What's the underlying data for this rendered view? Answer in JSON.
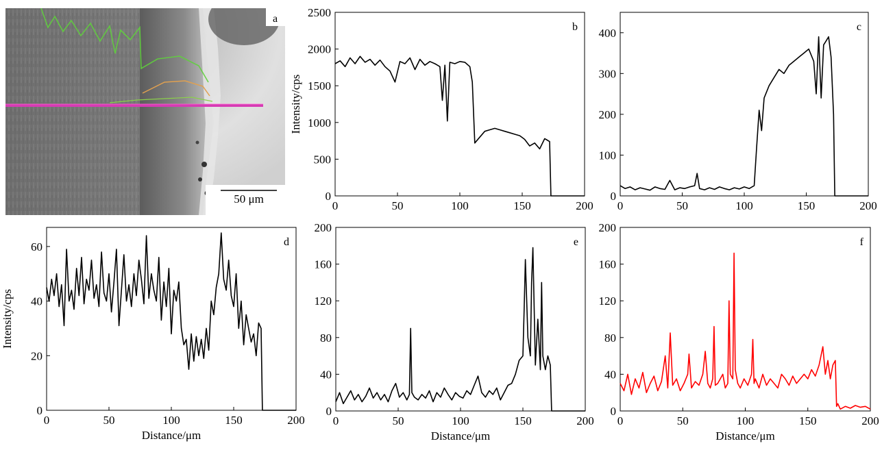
{
  "micrograph": {
    "label": "a",
    "scale_bar_label": "50 μm"
  },
  "chart_data": [
    {
      "type": "line",
      "label": "b",
      "color": "#000000",
      "xlabel": "",
      "ylabel": "Intensity/cps",
      "xlim": [
        0,
        200
      ],
      "ylim": [
        0,
        2500
      ],
      "xticks": [
        0,
        50,
        100,
        150,
        200
      ],
      "yticks": [
        0,
        500,
        1000,
        1500,
        2000,
        2500
      ],
      "x": [
        0,
        4,
        8,
        12,
        16,
        20,
        24,
        28,
        32,
        36,
        40,
        44,
        48,
        52,
        56,
        60,
        64,
        68,
        72,
        76,
        80,
        84,
        86,
        88,
        90,
        92,
        96,
        100,
        104,
        108,
        110,
        112,
        116,
        120,
        124,
        128,
        132,
        136,
        140,
        144,
        148,
        152,
        156,
        160,
        164,
        168,
        170,
        172,
        173,
        176,
        180,
        184,
        188,
        192,
        196,
        200
      ],
      "values": [
        1800,
        1840,
        1760,
        1880,
        1800,
        1900,
        1820,
        1860,
        1780,
        1850,
        1760,
        1700,
        1550,
        1830,
        1800,
        1880,
        1720,
        1860,
        1780,
        1830,
        1800,
        1760,
        1300,
        1780,
        1020,
        1820,
        1800,
        1830,
        1820,
        1760,
        1550,
        720,
        800,
        880,
        900,
        920,
        900,
        880,
        860,
        840,
        820,
        770,
        680,
        720,
        640,
        780,
        760,
        740,
        0,
        0,
        0,
        0,
        0,
        0,
        0,
        0
      ]
    },
    {
      "type": "line",
      "label": "c",
      "color": "#000000",
      "xlabel": "",
      "ylabel": "",
      "xlim": [
        0,
        200
      ],
      "ylim": [
        0,
        450
      ],
      "xticks": [
        0,
        50,
        100,
        150,
        200
      ],
      "yticks": [
        0,
        100,
        200,
        300,
        400
      ],
      "x": [
        0,
        4,
        8,
        12,
        16,
        20,
        24,
        28,
        32,
        36,
        40,
        44,
        48,
        52,
        56,
        60,
        62,
        64,
        68,
        72,
        76,
        80,
        84,
        88,
        92,
        96,
        100,
        104,
        108,
        110,
        112,
        114,
        116,
        120,
        124,
        128,
        132,
        136,
        140,
        144,
        148,
        152,
        156,
        158,
        160,
        162,
        164,
        166,
        168,
        170,
        172,
        173,
        176,
        180,
        184,
        188,
        192,
        196,
        200
      ],
      "values": [
        25,
        18,
        22,
        15,
        20,
        17,
        14,
        22,
        18,
        16,
        38,
        15,
        20,
        18,
        22,
        25,
        55,
        18,
        15,
        20,
        16,
        22,
        18,
        15,
        20,
        17,
        22,
        18,
        25,
        120,
        210,
        160,
        240,
        270,
        290,
        310,
        300,
        320,
        330,
        340,
        350,
        360,
        330,
        250,
        390,
        240,
        370,
        380,
        390,
        340,
        200,
        0,
        0,
        0,
        0,
        0,
        0,
        0,
        0
      ]
    },
    {
      "type": "line",
      "label": "d",
      "color": "#000000",
      "xlabel": "Distance/μm",
      "ylabel": "Intensity/cps",
      "xlim": [
        0,
        200
      ],
      "ylim": [
        0,
        67
      ],
      "xticks": [
        0,
        50,
        100,
        150,
        200
      ],
      "yticks": [
        0,
        20,
        40,
        60
      ],
      "x": [
        0,
        2,
        4,
        6,
        8,
        10,
        12,
        14,
        16,
        18,
        20,
        22,
        24,
        26,
        28,
        30,
        32,
        34,
        36,
        38,
        40,
        42,
        44,
        46,
        48,
        50,
        52,
        54,
        56,
        58,
        60,
        62,
        64,
        66,
        68,
        70,
        72,
        74,
        76,
        78,
        80,
        82,
        84,
        86,
        88,
        90,
        92,
        94,
        96,
        98,
        100,
        102,
        104,
        106,
        108,
        110,
        112,
        114,
        116,
        118,
        120,
        122,
        124,
        126,
        128,
        130,
        132,
        134,
        136,
        138,
        140,
        142,
        144,
        146,
        148,
        150,
        152,
        154,
        156,
        158,
        160,
        162,
        164,
        166,
        168,
        170,
        172,
        173,
        176,
        180,
        184,
        188,
        192,
        196,
        200
      ],
      "values": [
        45,
        40,
        48,
        42,
        50,
        38,
        46,
        31,
        59,
        40,
        44,
        37,
        52,
        42,
        56,
        39,
        48,
        44,
        55,
        41,
        46,
        38,
        58,
        43,
        40,
        50,
        36,
        47,
        59,
        31,
        44,
        57,
        40,
        46,
        38,
        50,
        42,
        55,
        48,
        39,
        64,
        41,
        50,
        44,
        40,
        56,
        33,
        47,
        38,
        52,
        28,
        44,
        40,
        47,
        30,
        24,
        26,
        15,
        28,
        18,
        27,
        20,
        26,
        19,
        30,
        22,
        40,
        35,
        45,
        50,
        65,
        48,
        44,
        55,
        42,
        38,
        50,
        30,
        40,
        24,
        35,
        30,
        25,
        28,
        20,
        32,
        30,
        0,
        0,
        0,
        0,
        0,
        0,
        0,
        0
      ]
    },
    {
      "type": "line",
      "label": "e",
      "color": "#000000",
      "xlabel": "Distance/μm",
      "ylabel": "",
      "xlim": [
        0,
        200
      ],
      "ylim": [
        0,
        200
      ],
      "xticks": [
        0,
        50,
        100,
        150,
        200
      ],
      "yticks": [
        0,
        40,
        80,
        120,
        160,
        200
      ],
      "x": [
        0,
        3,
        6,
        9,
        12,
        15,
        18,
        21,
        24,
        27,
        30,
        33,
        36,
        39,
        42,
        45,
        48,
        51,
        54,
        57,
        59,
        60,
        61,
        63,
        66,
        69,
        72,
        75,
        78,
        81,
        84,
        87,
        90,
        93,
        96,
        99,
        102,
        105,
        108,
        111,
        114,
        117,
        120,
        123,
        126,
        129,
        132,
        135,
        138,
        141,
        144,
        147,
        150,
        151,
        152,
        154,
        156,
        157,
        158,
        160,
        162,
        164,
        165,
        166,
        168,
        170,
        172,
        173,
        176,
        180,
        184,
        188,
        190,
        192,
        196,
        200
      ],
      "values": [
        10,
        20,
        8,
        15,
        22,
        12,
        18,
        10,
        16,
        25,
        14,
        20,
        12,
        18,
        10,
        22,
        30,
        15,
        20,
        12,
        18,
        90,
        20,
        15,
        12,
        18,
        14,
        22,
        10,
        20,
        15,
        25,
        18,
        12,
        20,
        16,
        14,
        22,
        18,
        28,
        38,
        20,
        15,
        22,
        18,
        25,
        12,
        20,
        28,
        30,
        40,
        55,
        60,
        110,
        165,
        80,
        60,
        140,
        178,
        50,
        100,
        45,
        140,
        60,
        45,
        60,
        50,
        0,
        0,
        0,
        0,
        0,
        0,
        0,
        0,
        0
      ]
    },
    {
      "type": "line",
      "label": "f",
      "color": "#ff0000",
      "xlabel": "Distance/μm",
      "ylabel": "",
      "xlim": [
        0,
        200
      ],
      "ylim": [
        0,
        200
      ],
      "xticks": [
        0,
        50,
        100,
        150,
        200
      ],
      "yticks": [
        0,
        40,
        80,
        120,
        160,
        200
      ],
      "x": [
        0,
        3,
        6,
        9,
        12,
        15,
        18,
        21,
        24,
        27,
        30,
        33,
        36,
        38,
        40,
        42,
        45,
        48,
        51,
        54,
        55,
        57,
        60,
        63,
        66,
        68,
        70,
        72,
        74,
        75,
        76,
        78,
        80,
        82,
        84,
        86,
        87,
        88,
        90,
        91,
        92,
        94,
        96,
        99,
        102,
        105,
        106,
        107,
        108,
        111,
        114,
        117,
        120,
        123,
        126,
        129,
        132,
        135,
        138,
        141,
        144,
        147,
        150,
        153,
        156,
        159,
        162,
        164,
        166,
        168,
        170,
        172,
        173,
        174,
        176,
        180,
        184,
        188,
        192,
        196,
        200
      ],
      "values": [
        30,
        22,
        40,
        18,
        35,
        25,
        42,
        20,
        30,
        38,
        22,
        32,
        60,
        25,
        85,
        28,
        35,
        22,
        30,
        40,
        62,
        25,
        32,
        28,
        40,
        65,
        30,
        25,
        35,
        92,
        28,
        30,
        35,
        40,
        25,
        30,
        120,
        40,
        35,
        172,
        45,
        30,
        25,
        35,
        28,
        40,
        78,
        30,
        35,
        25,
        40,
        28,
        35,
        30,
        25,
        40,
        35,
        28,
        38,
        30,
        35,
        40,
        35,
        45,
        38,
        50,
        70,
        40,
        55,
        35,
        50,
        55,
        5,
        8,
        2,
        5,
        3,
        6,
        4,
        5,
        2
      ]
    }
  ]
}
